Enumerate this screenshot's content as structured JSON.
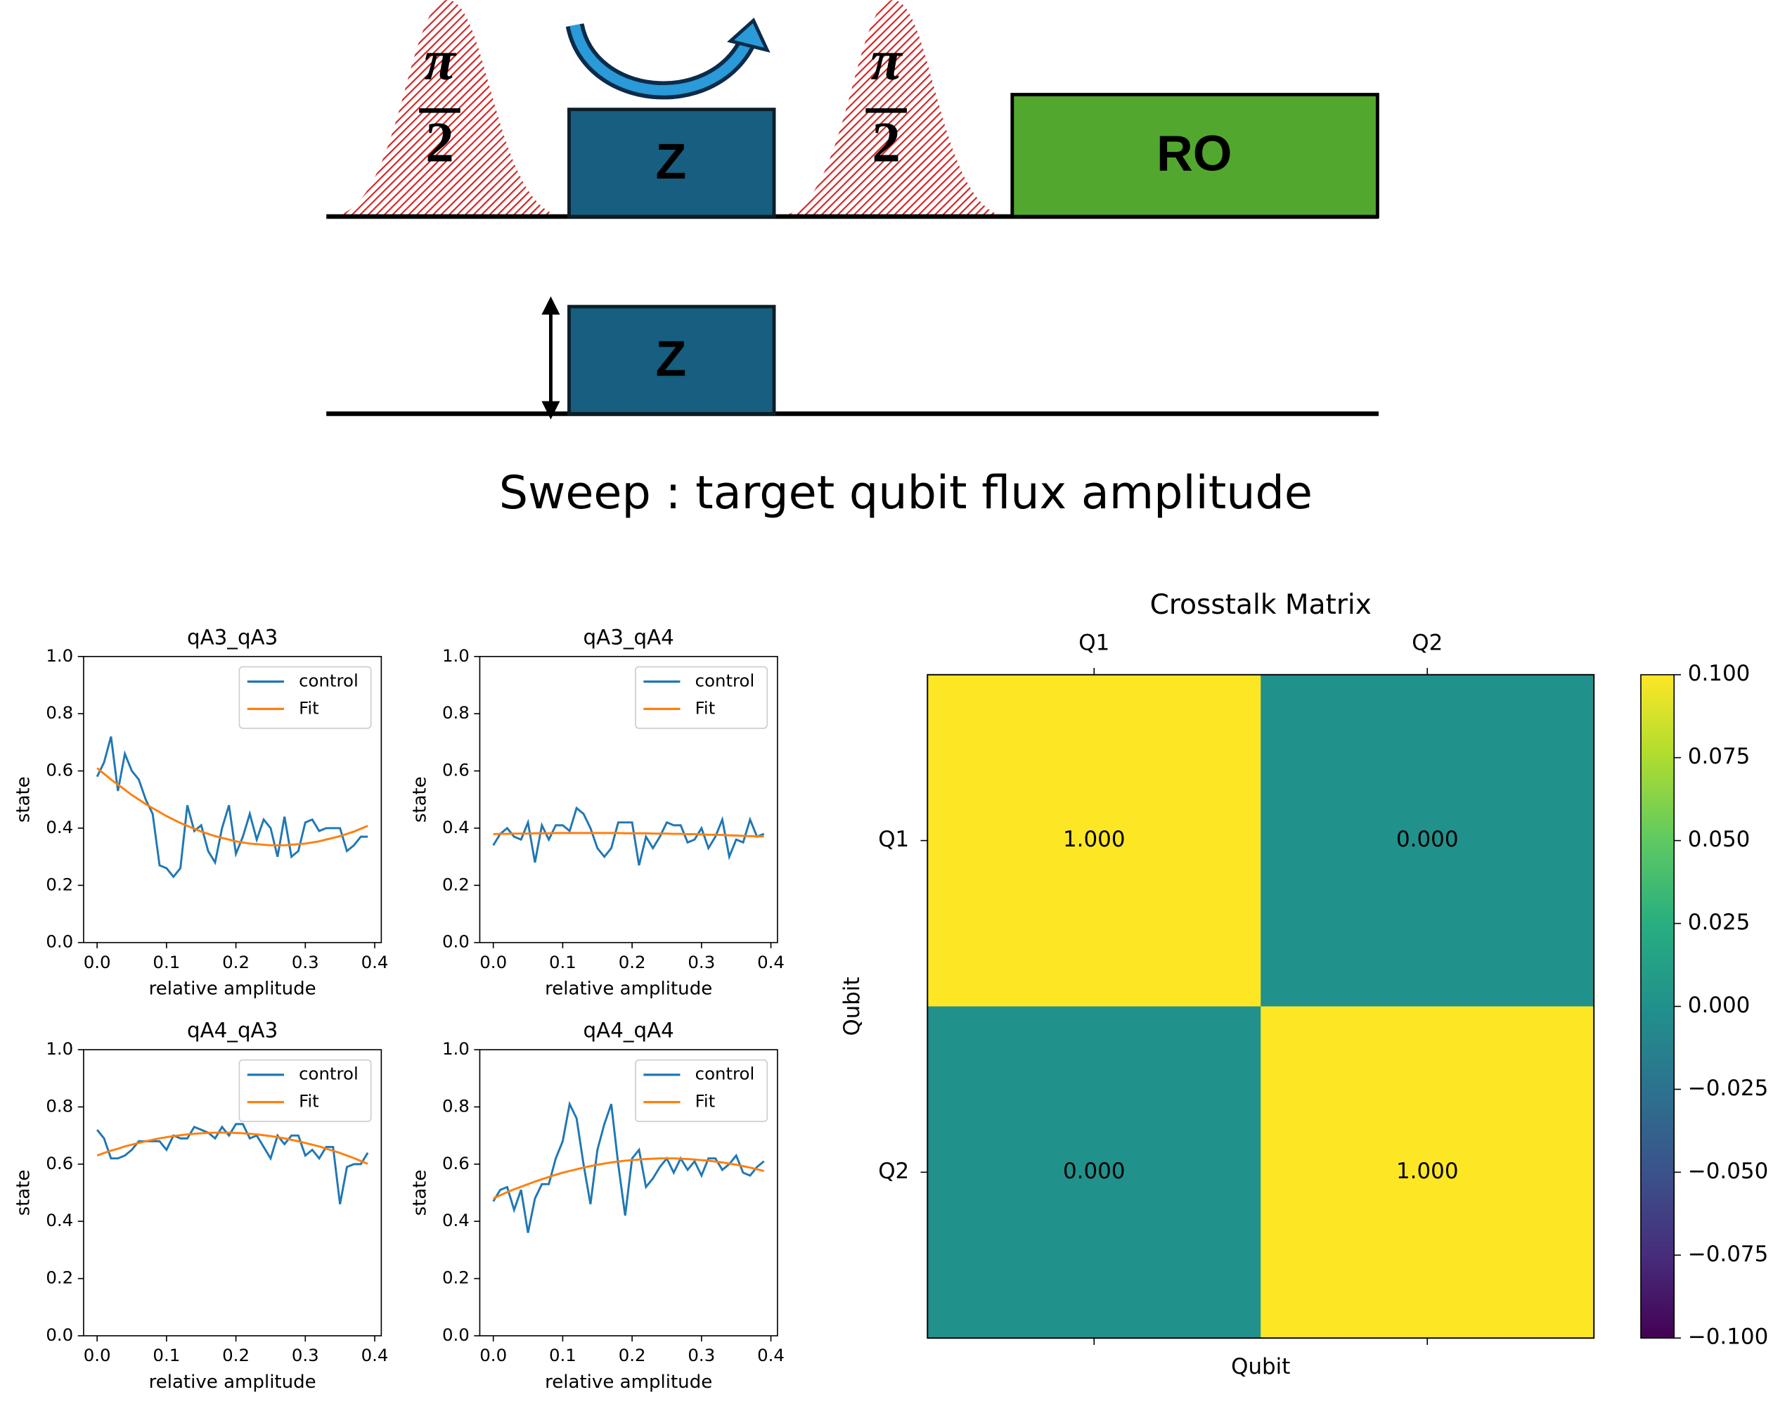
{
  "diagram": {
    "pulse_labels": [
      {
        "numerator": "π",
        "denominator": "2"
      },
      {
        "numerator": "π",
        "denominator": "2"
      }
    ],
    "z_control": "Z",
    "readout": "RO",
    "z_target": "Z",
    "caption": "Sweep : target qubit flux amplitude"
  },
  "chart_data": [
    {
      "type": "line",
      "title": "qA3_qA3",
      "xlabel": "relative amplitude",
      "ylabel": "state",
      "legend": "upper right",
      "x": [
        0,
        0.01,
        0.02,
        0.03,
        0.04,
        0.05,
        0.06,
        0.07,
        0.08,
        0.09,
        0.1,
        0.11,
        0.12,
        0.13,
        0.14,
        0.15,
        0.16,
        0.17,
        0.18,
        0.19,
        0.2,
        0.21,
        0.22,
        0.23,
        0.24,
        0.25,
        0.26,
        0.27,
        0.28,
        0.29,
        0.3,
        0.31,
        0.32,
        0.33,
        0.34,
        0.35,
        0.36,
        0.37,
        0.38,
        0.39
      ],
      "series": [
        {
          "name": "control",
          "color": "#1f77b4",
          "values": [
            0.58,
            0.63,
            0.72,
            0.53,
            0.66,
            0.6,
            0.57,
            0.5,
            0.45,
            0.27,
            0.26,
            0.23,
            0.26,
            0.48,
            0.39,
            0.41,
            0.32,
            0.28,
            0.4,
            0.48,
            0.31,
            0.37,
            0.45,
            0.36,
            0.43,
            0.4,
            0.3,
            0.44,
            0.3,
            0.32,
            0.42,
            0.43,
            0.39,
            0.4,
            0.4,
            0.4,
            0.32,
            0.34,
            0.37,
            0.37
          ]
        },
        {
          "name": "Fit",
          "color": "#ff7f0e",
          "values": [
            0.61,
            0.59,
            0.57,
            0.552,
            0.534,
            0.516,
            0.5,
            0.484,
            0.47,
            0.456,
            0.442,
            0.43,
            0.418,
            0.408,
            0.398,
            0.388,
            0.38,
            0.372,
            0.366,
            0.36,
            0.354,
            0.35,
            0.346,
            0.344,
            0.342,
            0.34,
            0.34,
            0.34,
            0.342,
            0.344,
            0.346,
            0.35,
            0.354,
            0.36,
            0.366,
            0.372,
            0.38,
            0.388,
            0.398,
            0.408
          ]
        }
      ],
      "xlim": [
        -0.0195,
        0.4095
      ],
      "xticks": [
        {
          "value": 0,
          "label": "0.0"
        },
        0.1,
        0.2,
        0.3,
        0.4
      ],
      "ylim": [
        0,
        1
      ],
      "yticks": [
        {
          "value": 0,
          "label": "0.0"
        },
        0.2,
        0.4,
        0.6,
        0.8,
        {
          "value": 1,
          "label": "1.0"
        }
      ]
    },
    {
      "type": "line",
      "title": "qA3_qA4",
      "xlabel": "relative amplitude",
      "ylabel": "state",
      "legend": "upper right",
      "x": [
        0,
        0.01,
        0.02,
        0.03,
        0.04,
        0.05,
        0.06,
        0.07,
        0.08,
        0.09,
        0.1,
        0.11,
        0.12,
        0.13,
        0.14,
        0.15,
        0.16,
        0.17,
        0.18,
        0.19,
        0.2,
        0.21,
        0.22,
        0.23,
        0.24,
        0.25,
        0.26,
        0.27,
        0.28,
        0.29,
        0.3,
        0.31,
        0.32,
        0.33,
        0.34,
        0.35,
        0.36,
        0.37,
        0.38,
        0.39
      ],
      "series": [
        {
          "name": "control",
          "color": "#1f77b4",
          "values": [
            0.34,
            0.38,
            0.4,
            0.37,
            0.36,
            0.42,
            0.28,
            0.41,
            0.36,
            0.41,
            0.41,
            0.39,
            0.47,
            0.45,
            0.4,
            0.33,
            0.3,
            0.33,
            0.42,
            0.42,
            0.42,
            0.27,
            0.37,
            0.33,
            0.37,
            0.42,
            0.41,
            0.41,
            0.35,
            0.36,
            0.4,
            0.33,
            0.37,
            0.43,
            0.3,
            0.36,
            0.35,
            0.43,
            0.37,
            0.38
          ]
        },
        {
          "name": "Fit",
          "color": "#ff7f0e",
          "values": [
            0.379,
            0.38,
            0.38,
            0.381,
            0.381,
            0.381,
            0.382,
            0.382,
            0.382,
            0.383,
            0.383,
            0.383,
            0.383,
            0.383,
            0.383,
            0.383,
            0.383,
            0.383,
            0.383,
            0.382,
            0.382,
            0.382,
            0.382,
            0.381,
            0.381,
            0.381,
            0.38,
            0.38,
            0.379,
            0.379,
            0.378,
            0.377,
            0.377,
            0.376,
            0.375,
            0.374,
            0.373,
            0.372,
            0.371,
            0.371
          ]
        }
      ],
      "xlim": [
        -0.0195,
        0.4095
      ],
      "xticks": [
        {
          "value": 0,
          "label": "0.0"
        },
        0.1,
        0.2,
        0.3,
        0.4
      ],
      "ylim": [
        0,
        1
      ],
      "yticks": [
        {
          "value": 0,
          "label": "0.0"
        },
        0.2,
        0.4,
        0.6,
        0.8,
        {
          "value": 1,
          "label": "1.0"
        }
      ]
    },
    {
      "type": "line",
      "title": "qA4_qA3",
      "xlabel": "relative amplitude",
      "ylabel": "state",
      "legend": "upper right",
      "x": [
        0,
        0.01,
        0.02,
        0.03,
        0.04,
        0.05,
        0.06,
        0.07,
        0.08,
        0.09,
        0.1,
        0.11,
        0.12,
        0.13,
        0.14,
        0.15,
        0.16,
        0.17,
        0.18,
        0.19,
        0.2,
        0.21,
        0.22,
        0.23,
        0.24,
        0.25,
        0.26,
        0.27,
        0.28,
        0.29,
        0.3,
        0.31,
        0.32,
        0.33,
        0.34,
        0.35,
        0.36,
        0.37,
        0.38,
        0.39
      ],
      "series": [
        {
          "name": "control",
          "color": "#1f77b4",
          "values": [
            0.72,
            0.69,
            0.62,
            0.62,
            0.63,
            0.65,
            0.68,
            0.68,
            0.68,
            0.68,
            0.65,
            0.7,
            0.69,
            0.69,
            0.73,
            0.72,
            0.71,
            0.69,
            0.73,
            0.7,
            0.74,
            0.74,
            0.69,
            0.7,
            0.66,
            0.62,
            0.7,
            0.67,
            0.7,
            0.7,
            0.63,
            0.65,
            0.62,
            0.66,
            0.66,
            0.46,
            0.59,
            0.6,
            0.6,
            0.64
          ]
        },
        {
          "name": "Fit",
          "color": "#ff7f0e",
          "values": [
            0.63,
            0.639,
            0.647,
            0.654,
            0.662,
            0.668,
            0.674,
            0.68,
            0.685,
            0.69,
            0.694,
            0.698,
            0.701,
            0.704,
            0.706,
            0.708,
            0.709,
            0.71,
            0.71,
            0.71,
            0.709,
            0.708,
            0.706,
            0.704,
            0.701,
            0.698,
            0.694,
            0.69,
            0.685,
            0.68,
            0.674,
            0.668,
            0.662,
            0.654,
            0.647,
            0.639,
            0.63,
            0.621,
            0.611,
            0.601
          ]
        }
      ],
      "xlim": [
        -0.0195,
        0.4095
      ],
      "xticks": [
        {
          "value": 0,
          "label": "0.0"
        },
        0.1,
        0.2,
        0.3,
        0.4
      ],
      "ylim": [
        0,
        1
      ],
      "yticks": [
        {
          "value": 0,
          "label": "0.0"
        },
        0.2,
        0.4,
        0.6,
        0.8,
        {
          "value": 1,
          "label": "1.0"
        }
      ]
    },
    {
      "type": "line",
      "title": "qA4_qA4",
      "xlabel": "relative amplitude",
      "ylabel": "state",
      "legend": "upper right",
      "x": [
        0,
        0.01,
        0.02,
        0.03,
        0.04,
        0.05,
        0.06,
        0.07,
        0.08,
        0.09,
        0.1,
        0.11,
        0.12,
        0.13,
        0.14,
        0.15,
        0.16,
        0.17,
        0.18,
        0.19,
        0.2,
        0.21,
        0.22,
        0.23,
        0.24,
        0.25,
        0.26,
        0.27,
        0.28,
        0.29,
        0.3,
        0.31,
        0.32,
        0.33,
        0.34,
        0.35,
        0.36,
        0.37,
        0.38,
        0.39
      ],
      "series": [
        {
          "name": "control",
          "color": "#1f77b4",
          "values": [
            0.47,
            0.51,
            0.52,
            0.44,
            0.51,
            0.36,
            0.48,
            0.53,
            0.53,
            0.62,
            0.68,
            0.81,
            0.76,
            0.6,
            0.46,
            0.65,
            0.74,
            0.81,
            0.6,
            0.42,
            0.62,
            0.65,
            0.52,
            0.55,
            0.59,
            0.62,
            0.57,
            0.62,
            0.58,
            0.61,
            0.56,
            0.62,
            0.62,
            0.58,
            0.6,
            0.63,
            0.57,
            0.56,
            0.59,
            0.61
          ]
        },
        {
          "name": "Fit",
          "color": "#ff7f0e",
          "values": [
            0.48,
            0.491,
            0.502,
            0.512,
            0.521,
            0.53,
            0.539,
            0.547,
            0.555,
            0.563,
            0.57,
            0.576,
            0.582,
            0.588,
            0.593,
            0.598,
            0.602,
            0.606,
            0.609,
            0.612,
            0.614,
            0.616,
            0.618,
            0.619,
            0.62,
            0.62,
            0.62,
            0.619,
            0.618,
            0.616,
            0.614,
            0.612,
            0.609,
            0.606,
            0.602,
            0.598,
            0.593,
            0.588,
            0.582,
            0.576
          ]
        }
      ],
      "xlim": [
        -0.0195,
        0.4095
      ],
      "xticks": [
        {
          "value": 0,
          "label": "0.0"
        },
        0.1,
        0.2,
        0.3,
        0.4
      ],
      "ylim": [
        0,
        1
      ],
      "yticks": [
        {
          "value": 0,
          "label": "0.0"
        },
        0.2,
        0.4,
        0.6,
        0.8,
        {
          "value": 1,
          "label": "1.0"
        }
      ]
    },
    {
      "type": "heatmap",
      "title": "Crosstalk Matrix",
      "xlabel": "Qubit",
      "ylabel": "Qubit",
      "colormap": "viridis",
      "xcategories": [
        "Q1",
        "Q2"
      ],
      "ycategories": [
        "Q1",
        "Q2"
      ],
      "z": [
        [
          1,
          0
        ],
        [
          0,
          1
        ]
      ],
      "value_labels": [
        [
          "1.000",
          "0.000"
        ],
        [
          "0.000",
          "1.000"
        ]
      ],
      "clim": [
        -0.1,
        0.1
      ],
      "cticks": [
        {
          "value": -0.1,
          "label": "−0.100"
        },
        {
          "value": -0.075,
          "label": "−0.075"
        },
        {
          "value": -0.05,
          "label": "−0.050"
        },
        {
          "value": -0.025,
          "label": "−0.025"
        },
        {
          "value": 0,
          "label": "0.000"
        },
        {
          "value": 0.025,
          "label": "0.025"
        },
        {
          "value": 0.05,
          "label": "0.050"
        },
        {
          "value": 0.075,
          "label": "0.075"
        },
        {
          "value": 0.1,
          "label": "0.100"
        }
      ]
    }
  ]
}
